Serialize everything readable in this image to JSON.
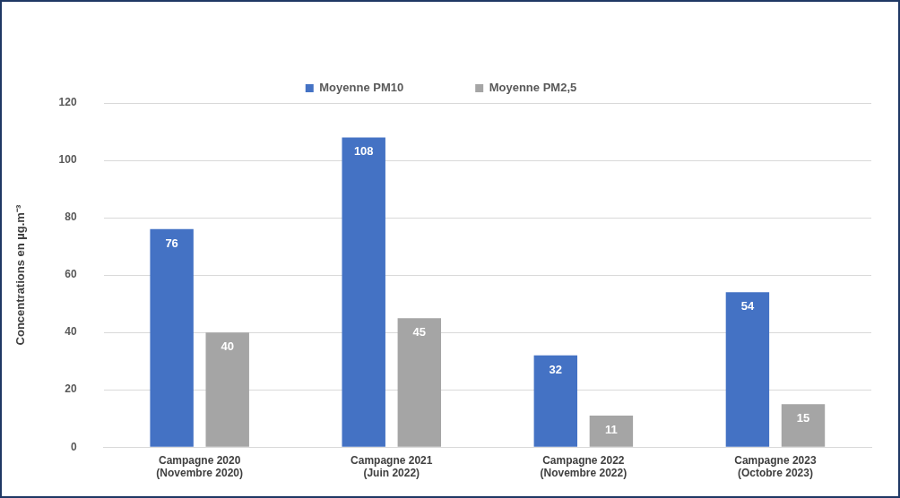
{
  "chart_data": {
    "type": "bar",
    "ylabel": "Concentrations en µg.m⁻³",
    "categories": [
      "Campagne 2020\n(Novembre 2020)",
      "Campagne 2021\n(Juin 2022)",
      "Campagne 2022\n(Novembre 2022)",
      "Campagne 2023\n(Octobre 2023)"
    ],
    "series": [
      {
        "name": "Moyenne PM10",
        "color": "#4472c4",
        "values": [
          76,
          108,
          32,
          54
        ]
      },
      {
        "name": "Moyenne PM2,5",
        "color": "#a5a5a5",
        "values": [
          40,
          45,
          11,
          15
        ]
      }
    ],
    "ylim": [
      0,
      120
    ],
    "yticks": [
      0,
      20,
      40,
      60,
      80,
      100,
      120
    ],
    "grid": "y",
    "legend": "top",
    "data_labels": true
  }
}
